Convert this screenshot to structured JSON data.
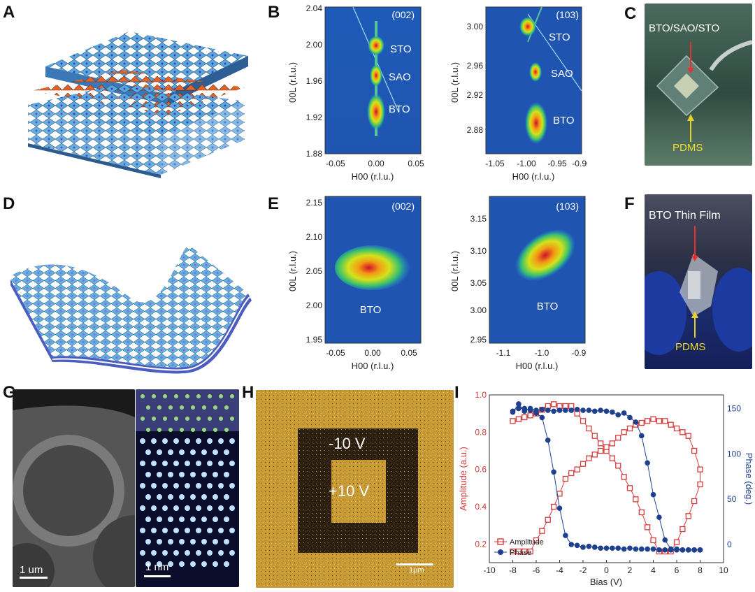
{
  "panel_labels": {
    "a": "A",
    "b": "B",
    "c": "C",
    "d": "D",
    "e": "E",
    "f": "F",
    "g": "G",
    "h": "H",
    "i": "I"
  },
  "rsm_b1": {
    "hkl": "(002)",
    "xlabel": "H00 (r.l.u.)",
    "ylabel": "00L (r.l.u.)",
    "xticks": [
      "-0.05",
      "0.00",
      "0.05"
    ],
    "yticks": [
      "2.04",
      "2.00",
      "1.96",
      "1.92",
      "1.88"
    ],
    "peaks": [
      "STO",
      "SAO",
      "BTO"
    ]
  },
  "rsm_b2": {
    "hkl": "(103)",
    "xlabel": "H00 (r.l.u.)",
    "ylabel": "00L (r.l.u.)",
    "xticks": [
      "-1.05",
      "-1.00",
      "-0.95",
      "-0.90"
    ],
    "yticks": [
      "3.00",
      "2.96",
      "2.92",
      "2.88"
    ],
    "peaks": [
      "STO",
      "SAO",
      "BTO"
    ]
  },
  "rsm_e1": {
    "hkl": "(002)",
    "xlabel": "H00 (r.l.u.)",
    "ylabel": "00L (r.l.u.)",
    "xticks": [
      "-0.05",
      "0.00",
      "0.05"
    ],
    "yticks": [
      "2.15",
      "2.10",
      "2.05",
      "2.00",
      "1.95"
    ],
    "peak": "BTO"
  },
  "rsm_e2": {
    "hkl": "(103)",
    "xlabel": "H00 (r.l.u.)",
    "ylabel": "00L (r.l.u.)",
    "xticks": [
      "-1.1",
      "-1.0",
      "-0.9"
    ],
    "yticks": [
      "3.15",
      "3.10",
      "3.05",
      "3.00",
      "2.95"
    ],
    "peak": "BTO"
  },
  "photo_c": {
    "top_label": "BTO/SAO/STO",
    "bottom_label": "PDMS"
  },
  "photo_f": {
    "top_label": "BTO Thin Film",
    "bottom_label": "PDMS"
  },
  "panel_g": {
    "scalebar_left": "1 um",
    "scalebar_right": "1 nm"
  },
  "panel_h": {
    "outer_label": "-10 V",
    "inner_label": "+10 V",
    "scalebar": "1μm"
  },
  "chart_data": {
    "type": "line",
    "title": "",
    "xlabel": "Bias (V)",
    "ylabel": "Amplitude (a.u.)",
    "y2label": "Phase (deg.)",
    "xlim": [
      -10,
      10
    ],
    "ylim": [
      0.1,
      1.0
    ],
    "y2lim": [
      -20,
      165
    ],
    "xticks": [
      -10,
      -8,
      -6,
      -4,
      -2,
      0,
      2,
      4,
      6,
      8,
      10
    ],
    "yticks": [
      0.2,
      0.4,
      0.6,
      0.8,
      1.0
    ],
    "y2ticks": [
      0,
      50,
      100,
      150
    ],
    "legend": [
      "Amplitude",
      "Phase"
    ],
    "series": [
      {
        "name": "Amplitude",
        "axis": "left",
        "color": "#d63a3a",
        "x": [
          -8,
          -7.5,
          -7,
          -6.5,
          -6,
          -5.5,
          -5,
          -4.5,
          -4,
          -3.5,
          -3,
          -2.5,
          -2,
          -1.5,
          -1,
          -0.5,
          0,
          0.5,
          1,
          1.5,
          2,
          2.5,
          3,
          3.5,
          4,
          4.5,
          5,
          5.5,
          6,
          6.5,
          7,
          7.5,
          8,
          8,
          7.5,
          7,
          6.5,
          6,
          5.5,
          5,
          4.5,
          4,
          3.5,
          3,
          2.5,
          2,
          1.5,
          1,
          0.5,
          0,
          -0.5,
          -1,
          -1.5,
          -2,
          -2.5,
          -3,
          -3.5,
          -4,
          -4.5,
          -5,
          -5.5,
          -6,
          -6.5,
          -7,
          -7.5,
          -8
        ],
        "y": [
          0.86,
          0.87,
          0.88,
          0.89,
          0.9,
          0.92,
          0.94,
          0.95,
          0.94,
          0.94,
          0.94,
          0.9,
          0.86,
          0.82,
          0.78,
          0.74,
          0.7,
          0.66,
          0.62,
          0.56,
          0.5,
          0.44,
          0.37,
          0.29,
          0.22,
          0.16,
          0.16,
          0.16,
          0.21,
          0.28,
          0.35,
          0.43,
          0.52,
          0.6,
          0.7,
          0.78,
          0.8,
          0.82,
          0.84,
          0.86,
          0.86,
          0.87,
          0.86,
          0.85,
          0.84,
          0.82,
          0.8,
          0.77,
          0.74,
          0.72,
          0.7,
          0.68,
          0.66,
          0.63,
          0.6,
          0.58,
          0.55,
          0.47,
          0.4,
          0.33,
          0.27,
          0.22,
          0.16,
          0.16,
          0.16,
          0.16
        ]
      },
      {
        "name": "Phase",
        "axis": "right",
        "color": "#1f3f8f",
        "x": [
          -8,
          -7.5,
          -7,
          -6.5,
          -6,
          -5.5,
          -5,
          -4.5,
          -4,
          -3.5,
          -3,
          -2.5,
          -2,
          -1.5,
          -1,
          -0.5,
          0,
          0.5,
          1,
          1.5,
          2,
          2.5,
          3,
          3.5,
          4,
          4.5,
          5,
          5.5,
          6,
          6.5,
          7,
          7.5,
          8,
          8,
          7.5,
          7,
          6.5,
          6,
          5.5,
          5,
          4.5,
          4,
          3.5,
          3,
          2.5,
          2,
          1.5,
          1,
          0.5,
          0,
          -0.5,
          -1,
          -1.5,
          -2,
          -2.5,
          -3,
          -3.5,
          -4,
          -4.5,
          -5,
          -5.5,
          -6,
          -6.5,
          -7,
          -7.5,
          -8
        ],
        "y": [
          146,
          155,
          147,
          150,
          148,
          149,
          148,
          147,
          148,
          148,
          148,
          149,
          148,
          148,
          147,
          148,
          147,
          146,
          143,
          145,
          140,
          135,
          120,
          90,
          55,
          30,
          5,
          -5,
          -5,
          -6,
          -6,
          -6,
          -6,
          -6,
          -6,
          -6,
          -6,
          -6,
          -6,
          -6,
          -6,
          -5,
          -5,
          -5,
          -5,
          -4,
          -5,
          -4,
          -4,
          -4,
          -4,
          -3,
          -2,
          -3,
          -1,
          0,
          10,
          40,
          80,
          115,
          140,
          145,
          148,
          150,
          150,
          147
        ]
      }
    ]
  }
}
